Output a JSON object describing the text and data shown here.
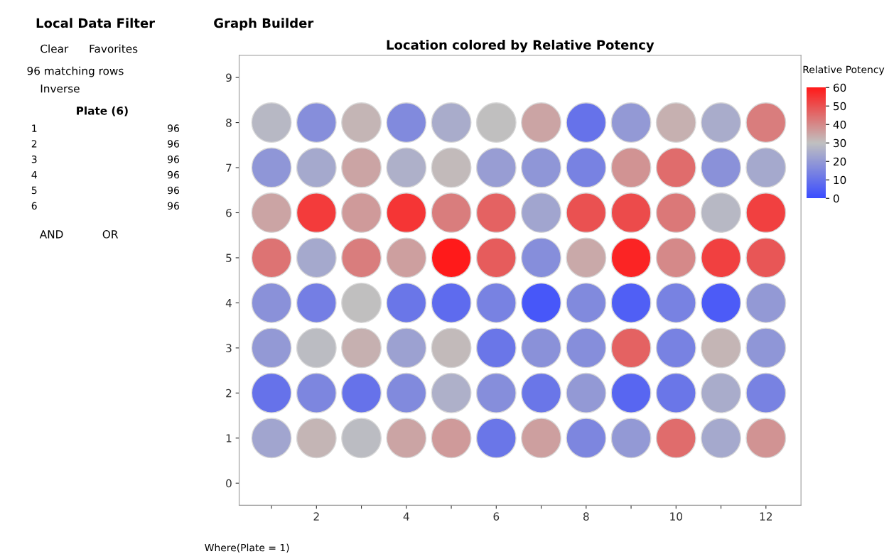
{
  "chart_data": {
    "type": "scatter",
    "title": "Location colored by Relative Potency",
    "clabel": "Relative Potency",
    "marker": "circle",
    "grid": false,
    "legend": false,
    "x": [
      1,
      2,
      3,
      4,
      5,
      6,
      7,
      8,
      9,
      10,
      11,
      12,
      1,
      2,
      3,
      4,
      5,
      6,
      7,
      8,
      9,
      10,
      11,
      12,
      1,
      2,
      3,
      4,
      5,
      6,
      7,
      8,
      9,
      10,
      11,
      12,
      1,
      2,
      3,
      4,
      5,
      6,
      7,
      8,
      9,
      10,
      11,
      12,
      1,
      2,
      3,
      4,
      5,
      6,
      7,
      8,
      9,
      10,
      11,
      12,
      1,
      2,
      3,
      4,
      5,
      6,
      7,
      8,
      9,
      10,
      11,
      12,
      1,
      2,
      3,
      4,
      5,
      6,
      7,
      8,
      9,
      10,
      11,
      12,
      1,
      2,
      3,
      4,
      5,
      6,
      7,
      8,
      9,
      10,
      11,
      12
    ],
    "values": [
      8,
      8,
      8,
      8,
      8,
      8,
      8,
      8,
      8,
      8,
      8,
      8,
      7,
      7,
      7,
      7,
      7,
      7,
      7,
      7,
      7,
      7,
      7,
      7,
      6,
      6,
      6,
      6,
      6,
      6,
      6,
      6,
      6,
      6,
      6,
      6,
      5,
      5,
      5,
      5,
      5,
      5,
      5,
      5,
      5,
      5,
      5,
      5,
      4,
      4,
      4,
      4,
      4,
      4,
      4,
      4,
      4,
      4,
      4,
      4,
      3,
      3,
      3,
      3,
      3,
      3,
      3,
      3,
      3,
      3,
      3,
      3,
      2,
      2,
      2,
      2,
      2,
      2,
      2,
      2,
      2,
      2,
      2,
      2,
      1,
      1,
      1,
      1,
      1,
      1,
      1,
      1,
      1,
      1,
      1,
      1
    ],
    "cvalues": [
      28,
      17,
      32,
      16,
      25,
      30,
      35,
      10,
      20,
      33,
      25,
      42,
      19,
      24,
      35,
      26,
      31,
      21,
      19,
      14,
      38,
      45,
      18,
      24,
      35,
      54,
      37,
      55,
      42,
      47,
      23,
      50,
      51,
      43,
      28,
      53,
      44,
      24,
      42,
      36,
      60,
      48,
      17,
      34,
      58,
      40,
      53,
      49,
      18,
      13,
      30,
      11,
      8,
      14,
      3,
      16,
      5,
      14,
      4,
      20,
      20,
      29,
      33,
      22,
      31,
      11,
      18,
      17,
      47,
      14,
      32,
      19,
      10,
      15,
      10,
      16,
      26,
      17,
      11,
      20,
      7,
      11,
      25,
      14,
      23,
      32,
      29,
      35,
      37,
      11,
      36,
      15,
      20,
      45,
      24,
      38
    ],
    "clim": [
      0,
      60
    ],
    "cticks": [
      0,
      10,
      20,
      30,
      40,
      50,
      60
    ],
    "xlim": [
      0.28,
      12.78
    ],
    "ylim": [
      -0.49,
      9.49
    ],
    "xticks": [
      {
        "value": 1,
        "label": null
      },
      2,
      {
        "value": 3,
        "label": null
      },
      4,
      {
        "value": 5,
        "label": null
      },
      6,
      {
        "value": 7,
        "label": null
      },
      8,
      {
        "value": 9,
        "label": null
      },
      10,
      {
        "value": 11,
        "label": null
      },
      12
    ],
    "yticks": [
      0,
      1,
      2,
      3,
      4,
      5,
      6,
      7,
      8,
      9
    ],
    "annotations": [
      "Where(Plate = 1)",
      "Graph Builder",
      "Local Data Filter",
      "Clear",
      "Favorites",
      "96 matching rows",
      "Inverse",
      "Plate (6)",
      "1",
      "96",
      "2",
      "96",
      "3",
      "96",
      "4",
      "96",
      "5",
      "96",
      "6",
      "96",
      "AND",
      "OR"
    ]
  }
}
